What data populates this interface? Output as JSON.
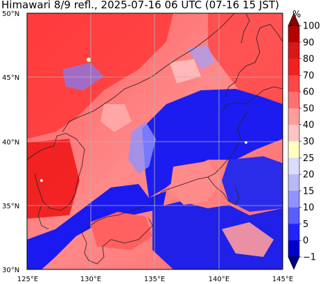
{
  "title": "Himawari 8/9 refl., 2025-07-16 06 UTC (07-16 15 JST)",
  "map": {
    "lat_labels": [
      "50°N",
      "45°N",
      "40°N",
      "35°N",
      "30°N"
    ],
    "lon_labels": [
      "125°E",
      "130°E",
      "135°E",
      "140°E",
      "145°E"
    ],
    "gridline_color": "#b4b4b4",
    "coastline_color": "#222222"
  },
  "colorbar": {
    "unit": "%",
    "tick_labels": [
      "100",
      "90",
      "80",
      "70",
      "60",
      "50",
      "40",
      "30",
      "25",
      "20",
      "15",
      "10",
      "5",
      "0",
      "−1"
    ],
    "colors_top_to_bottom": [
      "#8b0000",
      "#b50000",
      "#d81818",
      "#f22020",
      "#ff4545",
      "#ff7070",
      "#ff9c9c",
      "#ffc4c4",
      "#ffffc0",
      "#d9dcff",
      "#b7b9f5",
      "#8f92ff",
      "#5a5eff",
      "#2222ff",
      "#0000cc",
      "#00007a"
    ]
  }
}
